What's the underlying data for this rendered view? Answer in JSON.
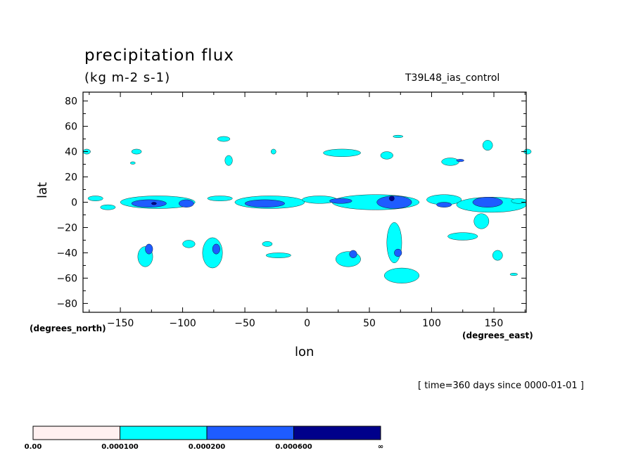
{
  "chart_data": {
    "type": "heatmap",
    "title": "precipitation flux",
    "units": "(kg m-2 s-1)",
    "run_name": "T39L48_ias_control",
    "xlabel": "lon",
    "ylabel": "lat",
    "x_unit_label": "(degrees_east)",
    "y_unit_label": "(degrees_north)",
    "time_label": "[ time=360 days since 0000-01-01 ]",
    "xlim": [
      -180,
      176
    ],
    "ylim": [
      -87,
      87
    ],
    "x_ticks": [
      -150,
      -100,
      -50,
      0,
      50,
      100,
      150
    ],
    "y_ticks": [
      80,
      60,
      40,
      20,
      0,
      -20,
      -40,
      -60,
      -80
    ],
    "x_tick_labels": [
      "−150",
      "−100",
      "−50",
      "0",
      "50",
      "100",
      "150"
    ],
    "y_tick_labels": [
      "80",
      "60",
      "40",
      "20",
      "0",
      "−20",
      "−40",
      "−60",
      "−80"
    ],
    "colorbar": {
      "levels": [
        "0.00",
        "0.000100",
        "0.000200",
        "0.000600",
        "∞"
      ],
      "colors": [
        "#fff0f0",
        "#00ffff",
        "#1e5cff",
        "#00008b"
      ]
    },
    "regions": [
      {
        "level": 1,
        "lon": -177,
        "lat": 40,
        "rx": 3,
        "ry": 2
      },
      {
        "level": 1,
        "lon": -137,
        "lat": 40,
        "rx": 4,
        "ry": 2
      },
      {
        "level": 1,
        "lon": -140,
        "lat": 31,
        "rx": 2,
        "ry": 1
      },
      {
        "level": 1,
        "lon": -67,
        "lat": 50,
        "rx": 5,
        "ry": 2
      },
      {
        "level": 1,
        "lon": -63,
        "lat": 33,
        "rx": 3,
        "ry": 4
      },
      {
        "level": 1,
        "lon": -27,
        "lat": 40,
        "rx": 2,
        "ry": 2
      },
      {
        "level": 1,
        "lon": 28,
        "lat": 39,
        "rx": 15,
        "ry": 3
      },
      {
        "level": 1,
        "lon": 64,
        "lat": 37,
        "rx": 5,
        "ry": 3
      },
      {
        "level": 1,
        "lon": 73,
        "lat": 52,
        "rx": 4,
        "ry": 1
      },
      {
        "level": 1,
        "lon": 115,
        "lat": 32,
        "rx": 7,
        "ry": 3
      },
      {
        "level": 1,
        "lon": 145,
        "lat": 45,
        "rx": 4,
        "ry": 4
      },
      {
        "level": 1,
        "lon": 177,
        "lat": 40,
        "rx": 3,
        "ry": 2
      },
      {
        "level": 1,
        "lon": -170,
        "lat": 3,
        "rx": 6,
        "ry": 2
      },
      {
        "level": 1,
        "lon": -160,
        "lat": -4,
        "rx": 6,
        "ry": 2
      },
      {
        "level": 1,
        "lon": -120,
        "lat": 0,
        "rx": 30,
        "ry": 5
      },
      {
        "level": 1,
        "lon": -70,
        "lat": 3,
        "rx": 10,
        "ry": 2
      },
      {
        "level": 1,
        "lon": -30,
        "lat": 0,
        "rx": 28,
        "ry": 5
      },
      {
        "level": 1,
        "lon": 10,
        "lat": 2,
        "rx": 14,
        "ry": 3
      },
      {
        "level": 1,
        "lon": 55,
        "lat": 0,
        "rx": 35,
        "ry": 6
      },
      {
        "level": 1,
        "lon": 110,
        "lat": 2,
        "rx": 14,
        "ry": 4
      },
      {
        "level": 1,
        "lon": 148,
        "lat": -2,
        "rx": 28,
        "ry": 6
      },
      {
        "level": 1,
        "lon": 170,
        "lat": 1,
        "rx": 6,
        "ry": 2
      },
      {
        "level": 1,
        "lon": -130,
        "lat": -43,
        "rx": 6,
        "ry": 8
      },
      {
        "level": 1,
        "lon": -95,
        "lat": -33,
        "rx": 5,
        "ry": 3
      },
      {
        "level": 1,
        "lon": -76,
        "lat": -40,
        "rx": 8,
        "ry": 12
      },
      {
        "level": 1,
        "lon": -23,
        "lat": -42,
        "rx": 10,
        "ry": 2
      },
      {
        "level": 1,
        "lon": -32,
        "lat": -33,
        "rx": 4,
        "ry": 2
      },
      {
        "level": 1,
        "lon": 33,
        "lat": -45,
        "rx": 10,
        "ry": 6
      },
      {
        "level": 1,
        "lon": 70,
        "lat": -32,
        "rx": 6,
        "ry": 16
      },
      {
        "level": 1,
        "lon": 76,
        "lat": -58,
        "rx": 14,
        "ry": 6
      },
      {
        "level": 1,
        "lon": 125,
        "lat": -27,
        "rx": 12,
        "ry": 3
      },
      {
        "level": 1,
        "lon": 140,
        "lat": -15,
        "rx": 6,
        "ry": 6
      },
      {
        "level": 1,
        "lon": 153,
        "lat": -42,
        "rx": 4,
        "ry": 4
      },
      {
        "level": 1,
        "lon": 166,
        "lat": -57,
        "rx": 3,
        "ry": 1
      },
      {
        "level": 2,
        "lon": -127,
        "lat": -1,
        "rx": 14,
        "ry": 3
      },
      {
        "level": 2,
        "lon": -97,
        "lat": -1,
        "rx": 6,
        "ry": 3
      },
      {
        "level": 2,
        "lon": -34,
        "lat": -1,
        "rx": 16,
        "ry": 3
      },
      {
        "level": 2,
        "lon": 27,
        "lat": 1,
        "rx": 9,
        "ry": 2
      },
      {
        "level": 2,
        "lon": 70,
        "lat": 0,
        "rx": 14,
        "ry": 5
      },
      {
        "level": 2,
        "lon": 110,
        "lat": -2,
        "rx": 6,
        "ry": 2
      },
      {
        "level": 2,
        "lon": 145,
        "lat": 0,
        "rx": 12,
        "ry": 4
      },
      {
        "level": 2,
        "lon": -127,
        "lat": -37,
        "rx": 3,
        "ry": 4
      },
      {
        "level": 2,
        "lon": -73,
        "lat": -37,
        "rx": 3,
        "ry": 4
      },
      {
        "level": 2,
        "lon": 37,
        "lat": -41,
        "rx": 3,
        "ry": 3
      },
      {
        "level": 2,
        "lon": 73,
        "lat": -40,
        "rx": 3,
        "ry": 3
      },
      {
        "level": 2,
        "lon": 123,
        "lat": 33,
        "rx": 3,
        "ry": 1
      },
      {
        "level": 3,
        "lon": 68,
        "lat": 3,
        "rx": 2,
        "ry": 2
      },
      {
        "level": 3,
        "lon": -123,
        "lat": -1,
        "rx": 2,
        "ry": 1
      }
    ]
  }
}
